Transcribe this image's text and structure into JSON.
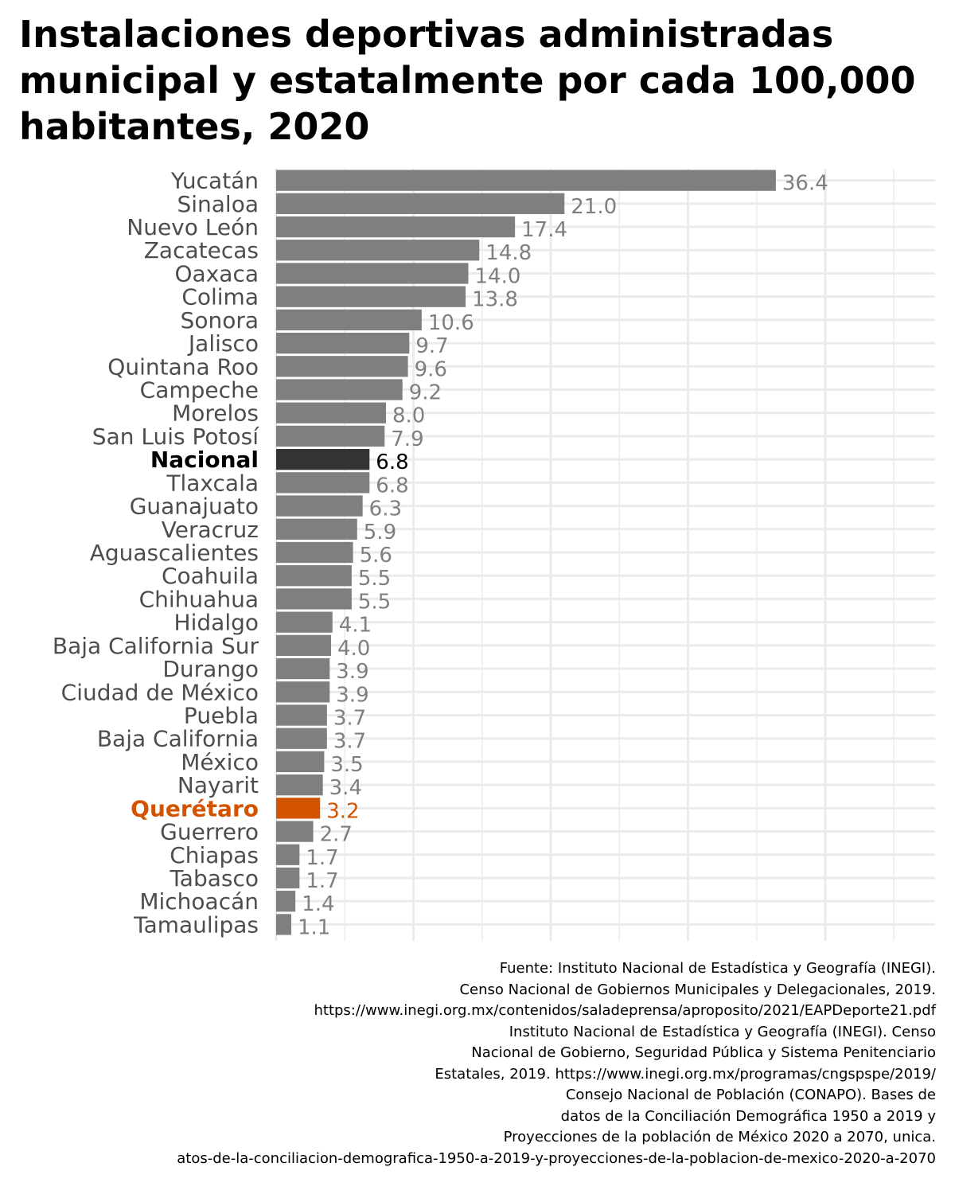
{
  "chart_data": {
    "type": "bar",
    "orientation": "horizontal",
    "title": "Instalaciones deportivas administradas municipal y estatalmente por cada 100,000 habitantes, 2020",
    "xlabel": "",
    "ylabel": "",
    "xlim": [
      0,
      48
    ],
    "grid": true,
    "legend": "none",
    "categories": [
      "Yucatán",
      "Sinaloa",
      "Nuevo León",
      "Zacatecas",
      "Oaxaca",
      "Colima",
      "Sonora",
      "Jalisco",
      "Quintana Roo",
      "Campeche",
      "Morelos",
      "San Luis Potosí",
      "Nacional",
      "Tlaxcala",
      "Guanajuato",
      "Veracruz",
      "Aguascalientes",
      "Coahuila",
      "Chihuahua",
      "Hidalgo",
      "Baja California Sur",
      "Durango",
      "Ciudad de México",
      "Puebla",
      "Baja California",
      "México",
      "Nayarit",
      "Querétaro",
      "Guerrero",
      "Chiapas",
      "Tabasco",
      "Michoacán",
      "Tamaulipas"
    ],
    "values": [
      36.4,
      21.0,
      17.4,
      14.8,
      14.0,
      13.8,
      10.6,
      9.7,
      9.6,
      9.2,
      8.0,
      7.9,
      6.8,
      6.8,
      6.3,
      5.9,
      5.6,
      5.5,
      5.5,
      4.1,
      4.0,
      3.9,
      3.9,
      3.7,
      3.7,
      3.5,
      3.4,
      3.2,
      2.7,
      1.7,
      1.7,
      1.4,
      1.1
    ],
    "value_labels": [
      "36.4",
      "21.0",
      "17.4",
      "14.8",
      "14.0",
      "13.8",
      "10.6",
      "9.7",
      "9.6",
      "9.2",
      "8.0",
      "7.9",
      "6.8",
      "6.8",
      "6.3",
      "5.9",
      "5.6",
      "5.5",
      "5.5",
      "4.1",
      "4.0",
      "3.9",
      "3.9",
      "3.7",
      "3.7",
      "3.5",
      "3.4",
      "3.2",
      "2.7",
      "1.7",
      "1.7",
      "1.4",
      "1.1"
    ],
    "highlights": {
      "Nacional": "national",
      "Querétaro": "queretaro"
    },
    "colors": {
      "default_bar": "#7f7f7f",
      "default_label": "#7f7f7f",
      "category_label": "#4d4d4d",
      "national_bar": "#333333",
      "national_label": "#000000",
      "queretaro": "#d35400",
      "grid": "#ebebeb"
    }
  },
  "source_lines": [
    "Fuente: Instituto Nacional de Estadística y Geografía (INEGI).",
    "Censo Nacional de Gobiernos Municipales y Delegacionales, 2019.",
    "https://www.inegi.org.mx/contenidos/saladeprensa/aproposito/2021/EAPDeporte21.pdf",
    "Instituto Nacional de Estadística y Geografía (INEGI). Censo",
    "Nacional de Gobierno, Seguridad Pública y Sistema Penitenciario",
    "Estatales, 2019. https://www.inegi.org.mx/programas/cngspspe/2019/",
    "Consejo Nacional de Población (CONAPO). Bases de",
    "datos de la Conciliación Demográfica 1950 a 2019 y",
    "Proyecciones de la población de México 2020 a 2070, unica.",
    "atos-de-la-conciliacion-demografica-1950-a-2019-y-proyecciones-de-la-poblacion-de-mexico-2020-a-2070"
  ]
}
